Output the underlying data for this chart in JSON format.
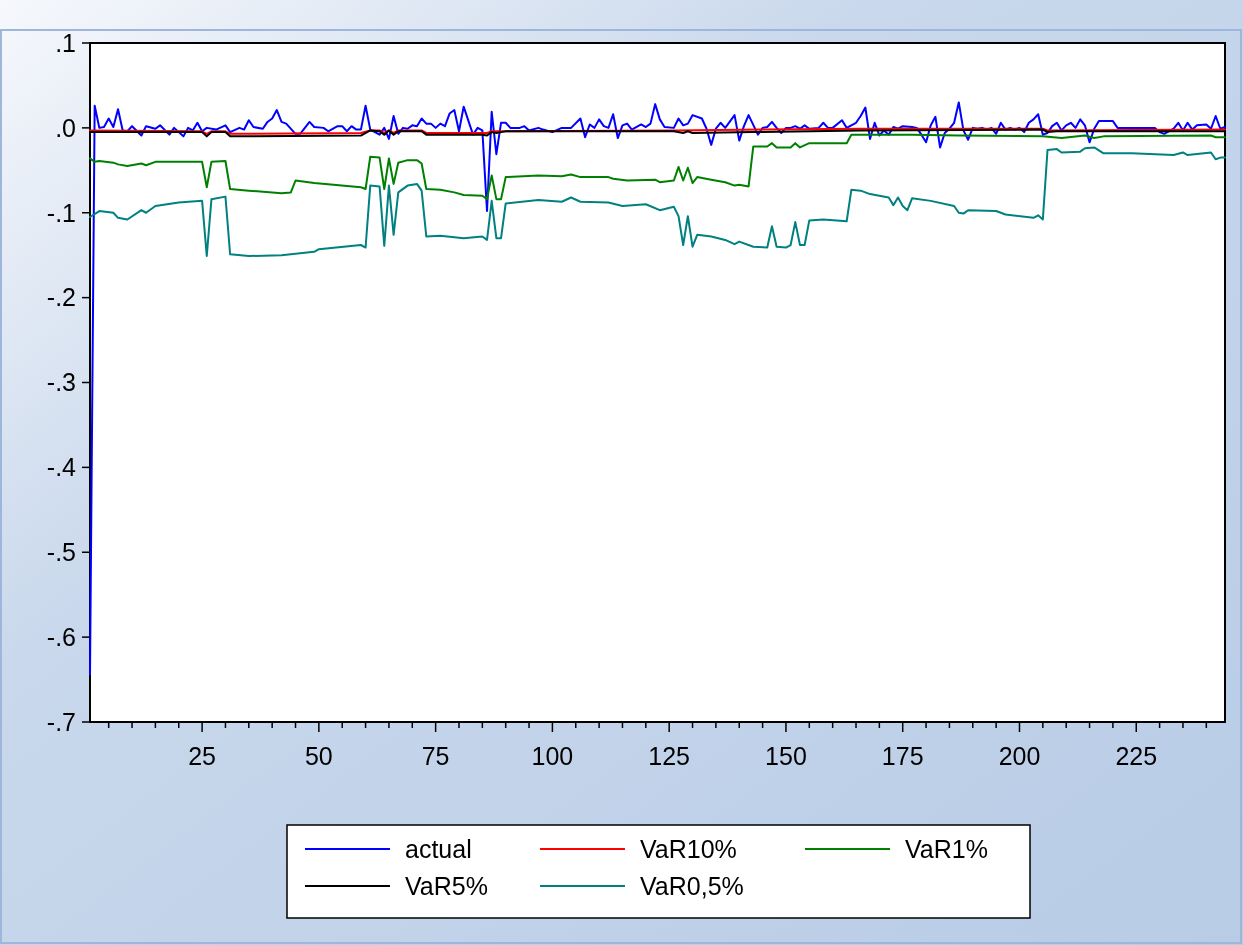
{
  "chart_data": {
    "type": "line",
    "xlim": [
      1,
      244
    ],
    "ylim": [
      -0.7,
      0.1
    ],
    "xticks": [
      {
        "value": 5,
        "label": null
      },
      {
        "value": 10,
        "label": null
      },
      {
        "value": 15,
        "label": null
      },
      {
        "value": 20,
        "label": null
      },
      25,
      {
        "value": 30,
        "label": null
      },
      {
        "value": 35,
        "label": null
      },
      {
        "value": 40,
        "label": null
      },
      {
        "value": 45,
        "label": null
      },
      50,
      {
        "value": 55,
        "label": null
      },
      {
        "value": 60,
        "label": null
      },
      {
        "value": 65,
        "label": null
      },
      {
        "value": 70,
        "label": null
      },
      75,
      {
        "value": 80,
        "label": null
      },
      {
        "value": 85,
        "label": null
      },
      {
        "value": 90,
        "label": null
      },
      {
        "value": 95,
        "label": null
      },
      100,
      {
        "value": 105,
        "label": null
      },
      {
        "value": 110,
        "label": null
      },
      {
        "value": 115,
        "label": null
      },
      {
        "value": 120,
        "label": null
      },
      125,
      {
        "value": 130,
        "label": null
      },
      {
        "value": 135,
        "label": null
      },
      {
        "value": 140,
        "label": null
      },
      {
        "value": 145,
        "label": null
      },
      150,
      {
        "value": 155,
        "label": null
      },
      {
        "value": 160,
        "label": null
      },
      {
        "value": 165,
        "label": null
      },
      {
        "value": 170,
        "label": null
      },
      175,
      {
        "value": 180,
        "label": null
      },
      {
        "value": 185,
        "label": null
      },
      {
        "value": 190,
        "label": null
      },
      {
        "value": 195,
        "label": null
      },
      200,
      {
        "value": 205,
        "label": null
      },
      {
        "value": 210,
        "label": null
      },
      {
        "value": 215,
        "label": null
      },
      {
        "value": 220,
        "label": null
      },
      225,
      {
        "value": 230,
        "label": null
      },
      {
        "value": 235,
        "label": null
      },
      {
        "value": 240,
        "label": null
      }
    ],
    "yticks": [
      {
        "value": 0.1,
        "label": ".1"
      },
      {
        "value": 0,
        "label": ".0"
      },
      {
        "value": -0.1,
        "label": "-.1"
      },
      {
        "value": -0.2,
        "label": "-.2"
      },
      {
        "value": -0.3,
        "label": "-.3"
      },
      {
        "value": -0.4,
        "label": "-.4"
      },
      {
        "value": -0.5,
        "label": "-.5"
      },
      {
        "value": -0.6,
        "label": "-.6"
      },
      {
        "value": -0.7,
        "label": "-.7"
      }
    ],
    "grid": false,
    "legend": "bottom",
    "marker": "none",
    "line_style": "solid",
    "series": [
      {
        "name": "actual",
        "color": "#0000ff",
        "x": [
          1,
          2,
          3,
          4,
          5,
          6,
          7,
          8,
          9,
          10,
          12,
          13,
          15,
          16,
          18,
          19,
          21,
          22,
          23,
          24,
          25,
          26,
          28,
          30,
          31,
          33,
          34,
          35,
          36,
          38,
          39,
          40,
          41,
          42,
          43,
          45,
          46,
          48,
          49,
          51,
          52,
          54,
          55,
          56,
          57,
          58,
          59,
          60,
          61,
          63,
          64,
          65,
          66,
          67,
          68,
          69,
          70,
          71,
          72,
          73,
          74,
          75,
          76,
          77,
          78,
          79,
          80,
          81,
          83,
          84,
          85,
          86,
          87,
          88,
          89,
          90,
          91,
          93,
          94,
          95,
          97,
          98,
          100,
          102,
          104,
          106,
          107,
          108,
          109,
          110,
          111,
          112,
          113,
          114,
          115,
          116,
          117,
          119,
          120,
          121,
          122,
          123,
          124,
          126,
          127,
          128,
          129,
          130,
          132,
          133,
          134,
          135,
          136,
          137,
          139,
          140,
          141,
          142,
          144,
          145,
          146,
          147,
          148,
          149,
          150,
          151,
          152,
          153,
          154,
          155,
          157,
          158,
          159,
          160,
          162,
          163,
          164,
          165,
          166,
          167,
          168,
          169,
          170,
          171,
          172,
          173,
          174,
          175,
          177,
          178,
          179,
          180,
          181,
          182,
          183,
          184,
          185,
          186,
          187,
          188,
          189,
          190,
          191,
          192,
          193,
          194,
          195,
          196,
          197,
          198,
          199,
          200,
          201,
          202,
          203,
          204,
          205,
          206,
          207,
          208,
          209,
          210,
          211,
          212,
          213,
          214,
          215,
          216,
          217,
          220,
          221,
          223,
          225,
          226,
          229,
          230,
          231,
          233,
          234,
          235,
          236,
          237,
          238,
          240,
          241,
          242,
          243,
          244
        ],
        "values": [
          -0.644,
          0.026,
          0,
          0.001,
          0.011,
          0.001,
          0.022,
          -0.003,
          -0.004,
          0.002,
          -0.009,
          0.002,
          -0.001,
          0.003,
          -0.008,
          0,
          -0.01,
          0,
          -0.003,
          0.006,
          -0.004,
          0,
          -0.002,
          0.003,
          -0.005,
          0,
          -0.002,
          0.009,
          0.001,
          -0.001,
          0.007,
          0.011,
          0.021,
          0.007,
          0.005,
          -0.007,
          -0.007,
          0.007,
          0.001,
          0,
          -0.004,
          0.002,
          0.002,
          -0.004,
          0.002,
          -0.002,
          -0.002,
          0.026,
          -0.002,
          -0.008,
          0,
          -0.013,
          0.014,
          -0.007,
          0,
          -0.001,
          0.003,
          0.002,
          0.011,
          0.005,
          0.005,
          0,
          0.005,
          0.002,
          0.017,
          0.021,
          -0.004,
          0.025,
          -0.008,
          0,
          -0.003,
          -0.098,
          0.019,
          -0.031,
          0.006,
          0.006,
          0,
          0,
          0.002,
          -0.003,
          0,
          -0.002,
          -0.005,
          0,
          0,
          0.011,
          -0.011,
          0.004,
          0,
          0.01,
          0.002,
          0,
          0.016,
          -0.012,
          0.003,
          0.005,
          -0.002,
          0.004,
          0.001,
          0.005,
          0.028,
          0.01,
          0.001,
          0,
          0.011,
          0.003,
          0.005,
          0.015,
          0.011,
          -0.001,
          -0.02,
          -0.001,
          0.006,
          0,
          0.015,
          -0.015,
          0.002,
          0.015,
          -0.008,
          0,
          0.001,
          0.007,
          0,
          -0.006,
          0,
          0,
          0.002,
          -0.001,
          0.003,
          -0.001,
          0,
          0.006,
          0,
          0,
          0.009,
          0,
          0.003,
          0.006,
          0.014,
          0.024,
          -0.013,
          0.006,
          -0.009,
          -0.003,
          -0.008,
          0.001,
          -0.001,
          0.002,
          0.001,
          0,
          -0.008,
          -0.017,
          0.003,
          0.013,
          -0.023,
          -0.006,
          -0.001,
          0.006,
          0.03,
          -0.003,
          -0.014,
          0,
          -0.001,
          0,
          -0.002,
          0,
          -0.007,
          0.006,
          -0.002,
          0,
          -0.002,
          0,
          -0.005,
          0.006,
          0.01,
          0.016,
          -0.008,
          -0.006,
          0.002,
          0.006,
          -0.003,
          0.003,
          0.006,
          0,
          0.01,
          0.003,
          -0.017,
          -0.001,
          0.008,
          0.008,
          0,
          0,
          0,
          0,
          0,
          -0.005,
          -0.007,
          -0.001,
          0.006,
          -0.003,
          0.006,
          -0.002,
          0.003,
          0.004,
          -0.001,
          0.014,
          -0.001,
          0.001
        ]
      },
      {
        "name": "VaR10%",
        "color": "#ff0000",
        "x": [
          1,
          25,
          26,
          27,
          30,
          31,
          59,
          61,
          63,
          64,
          65,
          66,
          67,
          72,
          73,
          86,
          87,
          88,
          126,
          166,
          205,
          206,
          244
        ],
        "values": [
          -0.003,
          -0.004,
          -0.007,
          -0.004,
          -0.004,
          -0.007,
          -0.006,
          -0.003,
          -0.003,
          -0.006,
          -0.003,
          -0.006,
          -0.003,
          -0.003,
          -0.006,
          -0.006,
          -0.004,
          -0.004,
          -0.003,
          -0.001,
          -0.001,
          -0.003,
          -0.002
        ]
      },
      {
        "name": "VaR1%",
        "color": "#008000",
        "x": [
          1,
          2,
          3,
          6,
          7,
          9,
          12,
          13,
          15,
          25,
          26,
          27,
          30,
          31,
          35,
          42,
          44,
          45,
          49,
          59,
          60,
          61,
          63,
          64,
          65,
          66,
          67,
          69,
          71,
          72,
          73,
          76,
          79,
          81,
          85,
          86,
          87,
          88,
          89,
          90,
          97,
          102,
          104,
          106,
          112,
          113,
          116,
          122,
          123,
          126,
          127,
          128,
          129,
          130,
          131,
          134,
          137,
          139,
          140,
          142,
          143,
          146,
          147,
          148,
          151,
          152,
          153,
          155,
          163,
          164,
          177,
          187,
          205,
          209,
          214,
          216,
          218,
          241,
          242,
          244
        ],
        "values": [
          -0.036,
          -0.04,
          -0.039,
          -0.041,
          -0.043,
          -0.045,
          -0.042,
          -0.044,
          -0.04,
          -0.04,
          -0.07,
          -0.04,
          -0.039,
          -0.072,
          -0.074,
          -0.077,
          -0.076,
          -0.062,
          -0.065,
          -0.07,
          -0.072,
          -0.034,
          -0.035,
          -0.072,
          -0.036,
          -0.066,
          -0.041,
          -0.038,
          -0.038,
          -0.042,
          -0.072,
          -0.073,
          -0.076,
          -0.079,
          -0.08,
          -0.084,
          -0.056,
          -0.084,
          -0.084,
          -0.058,
          -0.056,
          -0.057,
          -0.055,
          -0.058,
          -0.058,
          -0.06,
          -0.062,
          -0.061,
          -0.064,
          -0.062,
          -0.046,
          -0.062,
          -0.047,
          -0.065,
          -0.058,
          -0.061,
          -0.064,
          -0.068,
          -0.067,
          -0.069,
          -0.022,
          -0.022,
          -0.018,
          -0.023,
          -0.023,
          -0.018,
          -0.023,
          -0.018,
          -0.018,
          -0.008,
          -0.008,
          -0.009,
          -0.01,
          -0.012,
          -0.009,
          -0.012,
          -0.01,
          -0.009,
          -0.011,
          -0.011
        ]
      },
      {
        "name": "VaR5%",
        "color": "#000000",
        "x": [
          1,
          25,
          26,
          27,
          30,
          31,
          59,
          61,
          63,
          64,
          65,
          66,
          67,
          72,
          73,
          85,
          86,
          87,
          88,
          89,
          90,
          126,
          128,
          129,
          130,
          143,
          166,
          205,
          206,
          208,
          244
        ],
        "values": [
          -0.005,
          -0.005,
          -0.01,
          -0.005,
          -0.005,
          -0.01,
          -0.009,
          -0.003,
          -0.004,
          -0.008,
          -0.003,
          -0.008,
          -0.004,
          -0.004,
          -0.008,
          -0.008,
          -0.009,
          -0.005,
          -0.006,
          -0.005,
          -0.004,
          -0.004,
          -0.006,
          -0.004,
          -0.006,
          -0.005,
          -0.003,
          -0.002,
          -0.005,
          -0.004,
          -0.004
        ]
      },
      {
        "name": "VaR0,5%",
        "color": "#008080",
        "x": [
          1,
          3,
          6,
          7,
          9,
          12,
          13,
          15,
          20,
          25,
          26,
          27,
          30,
          31,
          35,
          42,
          49,
          50,
          59,
          60,
          61,
          63,
          64,
          65,
          66,
          67,
          69,
          71,
          72,
          73,
          76,
          81,
          85,
          86,
          87,
          88,
          89,
          90,
          97,
          102,
          104,
          106,
          112,
          115,
          120,
          123,
          126,
          127,
          128,
          129,
          130,
          131,
          134,
          137,
          139,
          140,
          143,
          146,
          147,
          148,
          150,
          151,
          152,
          153,
          154,
          155,
          158,
          163,
          164,
          166,
          168,
          172,
          173,
          174,
          175,
          176,
          177,
          181,
          186,
          187,
          188,
          189,
          195,
          197,
          203,
          204,
          205,
          206,
          208,
          209,
          213,
          214,
          216,
          218,
          224,
          233,
          235,
          236,
          241,
          242,
          243,
          244
        ],
        "values": [
          -0.105,
          -0.098,
          -0.1,
          -0.106,
          -0.108,
          -0.097,
          -0.1,
          -0.092,
          -0.088,
          -0.086,
          -0.151,
          -0.084,
          -0.081,
          -0.149,
          -0.151,
          -0.15,
          -0.146,
          -0.143,
          -0.138,
          -0.141,
          -0.068,
          -0.069,
          -0.139,
          -0.068,
          -0.126,
          -0.076,
          -0.068,
          -0.066,
          -0.074,
          -0.128,
          -0.127,
          -0.13,
          -0.128,
          -0.132,
          -0.086,
          -0.13,
          -0.13,
          -0.089,
          -0.085,
          -0.087,
          -0.082,
          -0.087,
          -0.088,
          -0.092,
          -0.09,
          -0.097,
          -0.093,
          -0.104,
          -0.138,
          -0.104,
          -0.14,
          -0.126,
          -0.128,
          -0.132,
          -0.137,
          -0.134,
          -0.14,
          -0.141,
          -0.116,
          -0.14,
          -0.141,
          -0.138,
          -0.111,
          -0.138,
          -0.138,
          -0.109,
          -0.108,
          -0.11,
          -0.073,
          -0.074,
          -0.078,
          -0.082,
          -0.091,
          -0.082,
          -0.092,
          -0.097,
          -0.083,
          -0.086,
          -0.092,
          -0.1,
          -0.101,
          -0.097,
          -0.098,
          -0.102,
          -0.106,
          -0.103,
          -0.108,
          -0.026,
          -0.025,
          -0.029,
          -0.028,
          -0.024,
          -0.023,
          -0.03,
          -0.03,
          -0.032,
          -0.029,
          -0.032,
          -0.029,
          -0.037,
          -0.035,
          -0.035
        ]
      }
    ]
  }
}
